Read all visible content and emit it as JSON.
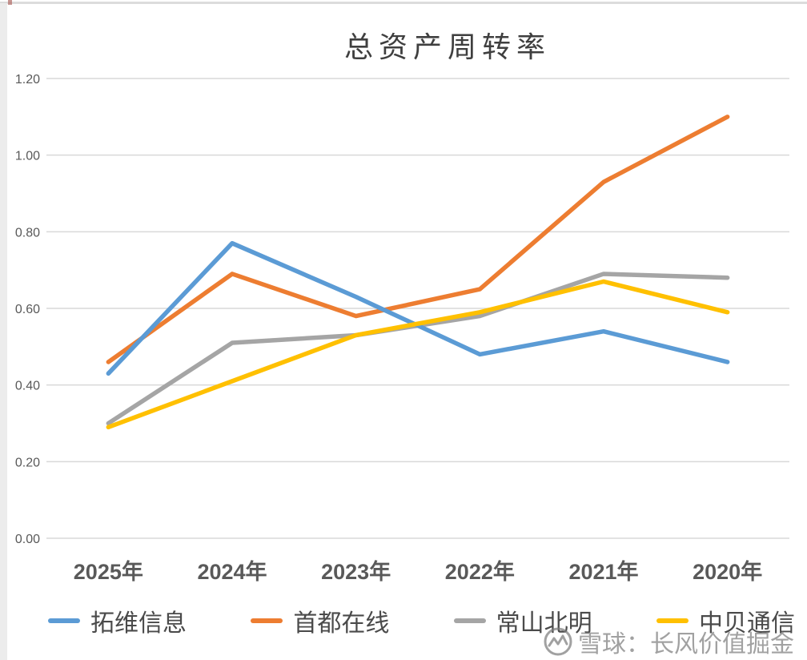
{
  "chart_data": {
    "type": "line",
    "title": "总资产周转率",
    "categories": [
      "2025年",
      "2024年",
      "2023年",
      "2022年",
      "2021年",
      "2020年"
    ],
    "series": [
      {
        "name": "拓维信息",
        "color": "#5B9BD5",
        "values": [
          0.43,
          0.77,
          0.63,
          0.48,
          0.54,
          0.46
        ]
      },
      {
        "name": "首都在线",
        "color": "#ED7D31",
        "values": [
          0.46,
          0.69,
          0.58,
          0.65,
          0.93,
          1.1
        ]
      },
      {
        "name": "常山北明",
        "color": "#A5A5A5",
        "values": [
          0.3,
          0.51,
          0.53,
          0.58,
          0.69,
          0.68
        ]
      },
      {
        "name": "中贝通信",
        "color": "#FFC000",
        "values": [
          0.29,
          0.41,
          0.53,
          0.59,
          0.67,
          0.59
        ]
      }
    ],
    "z_order": [
      1,
      2,
      0,
      3
    ],
    "ylim": [
      0.0,
      1.2
    ],
    "ytick_step": 0.2,
    "ytick_labels": [
      "0.00",
      "0.20",
      "0.40",
      "0.60",
      "0.80",
      "1.00",
      "1.20"
    ],
    "xlabel": "",
    "ylabel": "",
    "grid": "horizontal",
    "grid_color": "#D9D9D9",
    "axis_label_color": "#595959",
    "legend_position": "bottom"
  },
  "watermark": {
    "text": "雪球：长风价值掘金",
    "icon": "xueqiu-snowball-logo",
    "color": "#8c8c8c"
  }
}
